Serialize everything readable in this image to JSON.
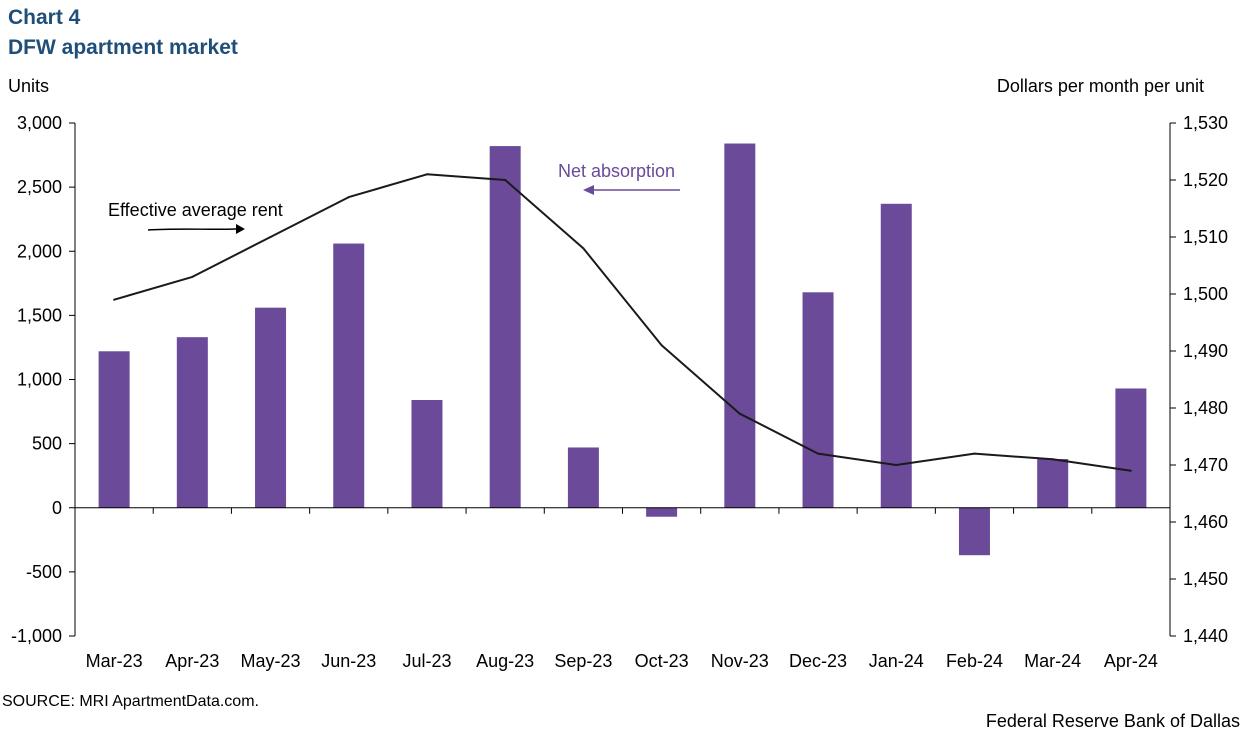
{
  "header": {
    "chart_number": "Chart 4",
    "title": "DFW apartment market"
  },
  "footer": {
    "source": "SOURCE: MRI ApartmentData.com.",
    "credit": "Federal Reserve Bank of Dallas"
  },
  "colors": {
    "bars": "#6a4a99",
    "line": "#1a1a1a",
    "title": "#1f4e79",
    "absorption_annotation": "#6a4a99"
  },
  "chart_data": {
    "type": "bar+line",
    "title": "DFW apartment market",
    "categories": [
      "Mar-23",
      "Apr-23",
      "May-23",
      "Jun-23",
      "Jul-23",
      "Aug-23",
      "Sep-23",
      "Oct-23",
      "Nov-23",
      "Dec-23",
      "Jan-24",
      "Feb-24",
      "Mar-24",
      "Apr-24"
    ],
    "series": [
      {
        "name": "Net absorption",
        "type": "bar",
        "axis": "left",
        "values": [
          1220,
          1330,
          1560,
          2060,
          840,
          2820,
          470,
          -70,
          2840,
          1680,
          2370,
          -370,
          380,
          930
        ]
      },
      {
        "name": "Effective average rent",
        "type": "line",
        "axis": "right",
        "values": [
          1499,
          1503,
          1510,
          1517,
          1521,
          1520,
          1508,
          1491,
          1479,
          1472,
          1470,
          1472,
          1471,
          1469
        ]
      }
    ],
    "y_left": {
      "label": "Units",
      "range": [
        -1000,
        3000
      ],
      "ticks": [
        -1000,
        -500,
        0,
        500,
        1000,
        1500,
        2000,
        2500,
        3000
      ],
      "tick_labels": [
        "-1,000",
        "-500",
        "0",
        "500",
        "1,000",
        "1,500",
        "2,000",
        "2,500",
        "3,000"
      ]
    },
    "y_right": {
      "label": "Dollars per month per unit",
      "range": [
        1440,
        1530
      ],
      "ticks": [
        1440,
        1450,
        1460,
        1470,
        1480,
        1490,
        1500,
        1510,
        1520,
        1530
      ],
      "tick_labels": [
        "1,440",
        "1,450",
        "1,460",
        "1,470",
        "1,480",
        "1,490",
        "1,500",
        "1,510",
        "1,520",
        "1,530"
      ]
    },
    "annotations": {
      "rent_label": "Effective average rent",
      "absorption_label": "Net absorption"
    },
    "grid": false
  }
}
